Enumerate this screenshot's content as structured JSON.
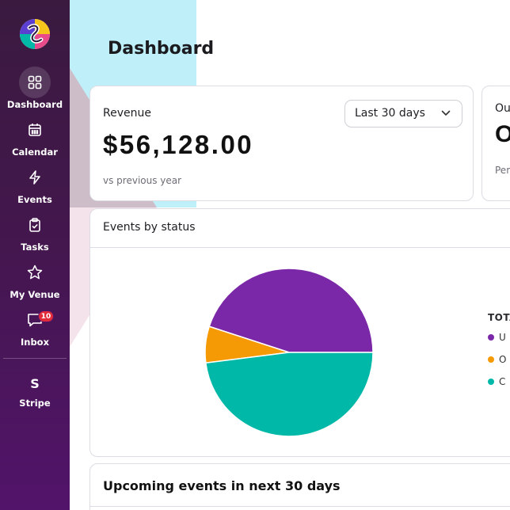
{
  "sidebar": {
    "items": [
      {
        "label": "Dashboard",
        "icon": "grid-icon"
      },
      {
        "label": "Calendar",
        "icon": "calendar-icon"
      },
      {
        "label": "Events",
        "icon": "lightning-icon"
      },
      {
        "label": "Tasks",
        "icon": "clipboard-icon"
      },
      {
        "label": "My Venue",
        "icon": "star-icon"
      },
      {
        "label": "Inbox",
        "icon": "chat-icon",
        "badge": "10"
      },
      {
        "label": "Stripe",
        "icon": "S"
      }
    ]
  },
  "header": {
    "title": "Dashboard"
  },
  "revenue": {
    "label": "Revenue",
    "value": "$56,128.00",
    "sub": "vs previous year",
    "range": "Last 30 days"
  },
  "outstanding": {
    "label": "Ou",
    "value": "O",
    "sub": "Per"
  },
  "status": {
    "title": "Events by status",
    "legend_title": "TOTA",
    "legend": [
      {
        "label": "U",
        "color": "#7b28a8"
      },
      {
        "label": "O",
        "color": "#f59a05"
      },
      {
        "label": "C",
        "color": "#00b8a7"
      }
    ]
  },
  "chart_data": {
    "type": "pie",
    "values": [
      45,
      7,
      48
    ],
    "colors": [
      "#7b28a8",
      "#f59a05",
      "#00b8a7"
    ]
  },
  "upcoming": {
    "title": "Upcoming events in next 30 days"
  }
}
